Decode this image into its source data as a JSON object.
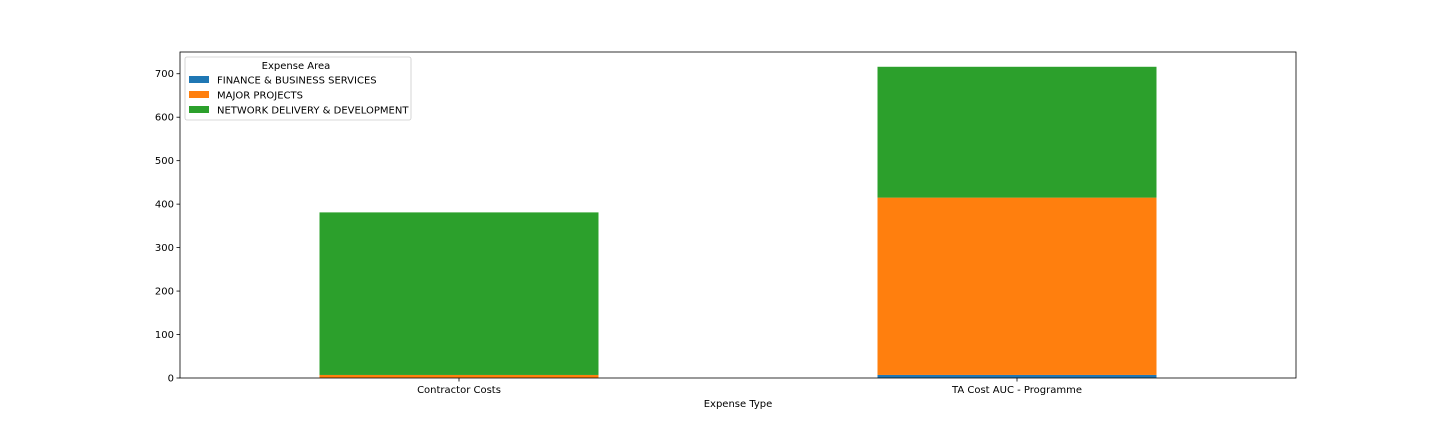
{
  "chart_data": {
    "type": "bar",
    "stacked": true,
    "categories": [
      "Contractor Costs",
      "TA Cost AUC - Programme"
    ],
    "series": [
      {
        "name": "FINANCE & BUSINESS SERVICES",
        "values": [
          0,
          7
        ],
        "color": "#1f77b4"
      },
      {
        "name": "MAJOR PROJECTS",
        "values": [
          7,
          408
        ],
        "color": "#ff7f0e"
      },
      {
        "name": "NETWORK DELIVERY & DEVELOPMENT",
        "values": [
          374,
          301
        ],
        "color": "#2ca02c"
      }
    ],
    "title": "",
    "xlabel": "Expense Type",
    "ylabel": "",
    "ylim": [
      0,
      750
    ],
    "yticks": [
      0,
      100,
      200,
      300,
      400,
      500,
      600,
      700
    ],
    "grid": false,
    "legend": {
      "title": "Expense Area",
      "placement": "top-left"
    }
  }
}
